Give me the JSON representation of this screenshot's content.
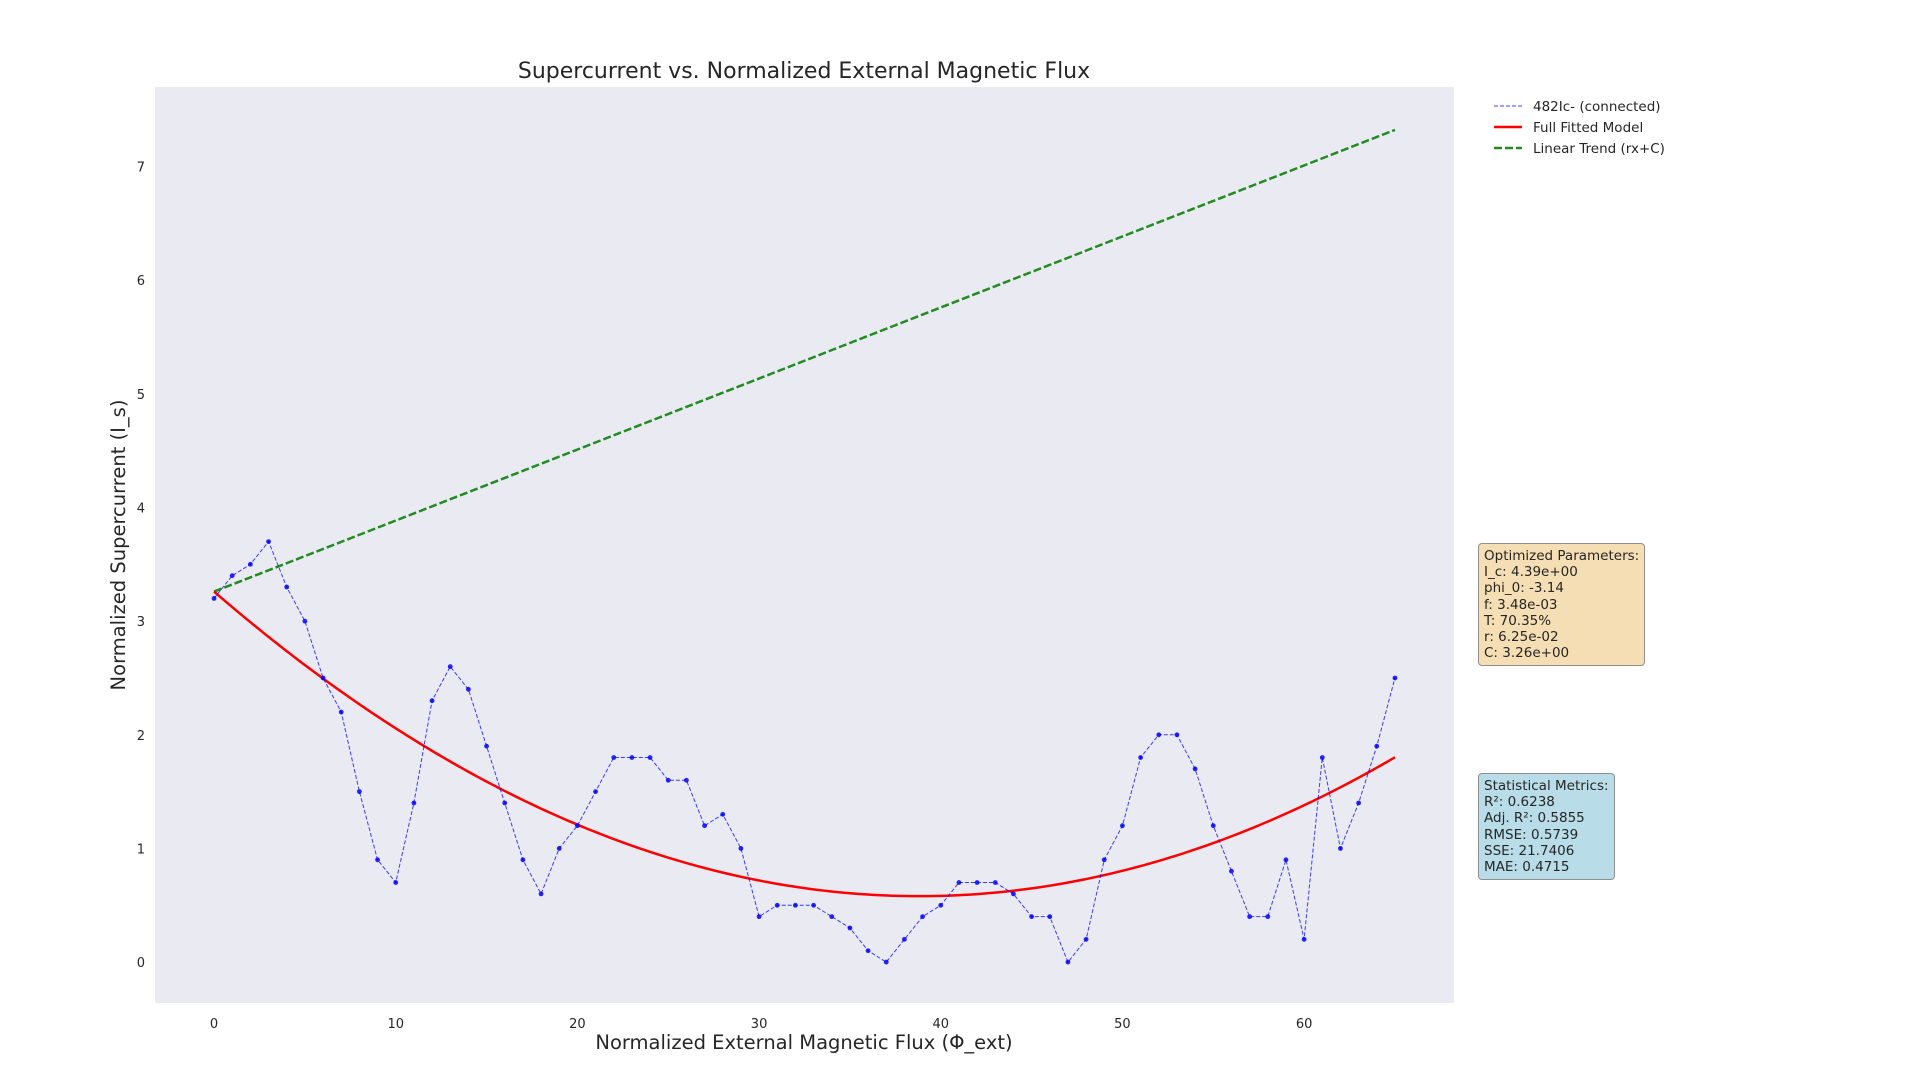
{
  "chart_data": {
    "type": "line",
    "title": "Supercurrent vs. Normalized External Magnetic Flux",
    "xlabel": "Normalized External Magnetic Flux (Φ_ext)",
    "ylabel": "Normalized Supercurrent (I_s)",
    "xlim": [
      -3.25,
      68.25
    ],
    "ylim": [
      -0.36,
      7.7
    ],
    "xticks": [
      0,
      10,
      20,
      30,
      40,
      50,
      60
    ],
    "yticks": [
      0,
      1,
      2,
      3,
      4,
      5,
      6,
      7
    ],
    "grid": false,
    "legend_position": "upper right outside",
    "series": [
      {
        "name": "482Ic- (connected)",
        "style": "dashed-markers",
        "color": "#0000ff",
        "x": [
          0,
          1,
          2,
          3,
          4,
          5,
          6,
          7,
          8,
          9,
          10,
          11,
          12,
          13,
          14,
          15,
          16,
          17,
          18,
          19,
          20,
          21,
          22,
          23,
          24,
          25,
          26,
          27,
          28,
          29,
          30,
          31,
          32,
          33,
          34,
          35,
          36,
          37,
          38,
          39,
          40,
          41,
          42,
          43,
          44,
          45,
          46,
          47,
          48,
          49,
          50,
          51,
          52,
          53,
          54,
          55,
          56,
          57,
          58,
          59,
          60,
          61,
          62,
          63,
          64,
          65
        ],
        "y": [
          3.2,
          3.4,
          3.5,
          3.7,
          3.3,
          3.0,
          2.5,
          2.2,
          1.5,
          0.9,
          0.7,
          1.4,
          2.3,
          2.6,
          2.4,
          1.9,
          1.4,
          0.9,
          0.6,
          1.0,
          1.2,
          1.5,
          1.8,
          1.8,
          1.8,
          1.6,
          1.6,
          1.2,
          1.3,
          1.0,
          0.4,
          0.5,
          0.5,
          0.5,
          0.4,
          0.3,
          0.1,
          0.0,
          0.2,
          0.4,
          0.5,
          0.7,
          0.7,
          0.7,
          0.6,
          0.4,
          0.4,
          0.0,
          0.2,
          0.9,
          1.2,
          1.8,
          2.0,
          2.0,
          1.7,
          1.2,
          0.8,
          0.4,
          0.4,
          0.9,
          0.2,
          1.8,
          1.0,
          1.4,
          1.9,
          2.5
        ]
      },
      {
        "name": "Full Fitted Model",
        "style": "solid",
        "color": "#ff0000",
        "model": "quadratic",
        "vertex_x": 38.8,
        "vertex_y": 0.58,
        "y_at_0": 3.26,
        "x_range": [
          0,
          65
        ]
      },
      {
        "name": "Linear Trend (rx+C)",
        "style": "dashed",
        "color": "#228b22",
        "slope": 0.0625,
        "intercept": 3.26,
        "x_range": [
          0,
          65
        ]
      }
    ]
  },
  "params_box": {
    "title": "Optimized Parameters:",
    "lines": [
      "I_c: 4.39e+00",
      "phi_0: -3.14",
      "f: 3.48e-03",
      "T: 70.35%",
      "r: 6.25e-02",
      "C: 3.26e+00"
    ]
  },
  "metrics_box": {
    "title": "Statistical Metrics:",
    "lines": [
      "R²: 0.6238",
      "Adj. R²: 0.5855",
      "RMSE: 0.5739",
      "SSE: 21.7406",
      "MAE: 0.4715"
    ]
  },
  "colors": {
    "plot_background": "#eaeaf2",
    "params_box_bg": "#f5deb3",
    "metrics_box_bg": "#b9dde8"
  }
}
